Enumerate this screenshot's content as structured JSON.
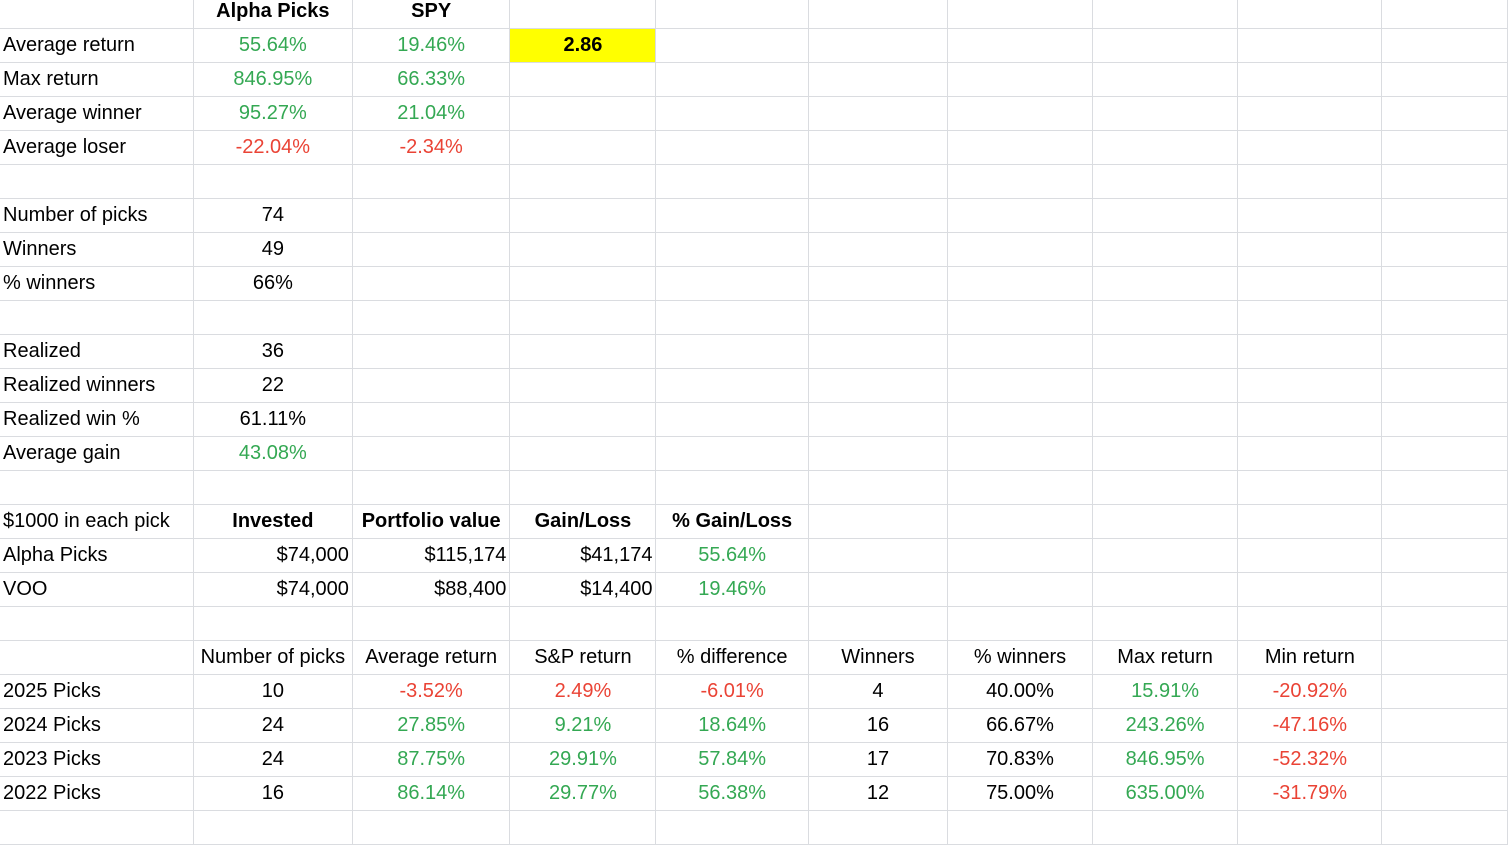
{
  "colors": {
    "positive": "#34a853",
    "negative": "#ea4335",
    "highlight": "#ffff00",
    "grid": "#dadce0"
  },
  "sheet": {
    "header": {
      "col_alpha": "Alpha Picks",
      "col_spy": "SPY"
    },
    "stats": [
      {
        "label": "Average return",
        "alpha": "55.64%",
        "spy": "19.46%"
      },
      {
        "label": "Max return",
        "alpha": "846.95%",
        "spy": "66.33%"
      },
      {
        "label": "Average winner",
        "alpha": "95.27%",
        "spy": "21.04%"
      },
      {
        "label": "Average loser",
        "alpha": "-22.04%",
        "spy": "-2.34%"
      }
    ],
    "ratio": "2.86",
    "counts": [
      {
        "label": "Number of picks",
        "value": "74"
      },
      {
        "label": "Winners",
        "value": "49"
      },
      {
        "label": "% winners",
        "value": "66%"
      }
    ],
    "realized": [
      {
        "label": "Realized",
        "value": "36"
      },
      {
        "label": "Realized winners",
        "value": "22"
      },
      {
        "label": "Realized win %",
        "value": "61.11%"
      },
      {
        "label": "Average gain",
        "value": "43.08%"
      }
    ],
    "portfolio": {
      "headers": [
        "$1000 in each pick",
        "Invested",
        "Portfolio value",
        "Gain/Loss",
        "% Gain/Loss"
      ],
      "rows": [
        {
          "name": "Alpha Picks",
          "invested": "$74,000",
          "value": "$115,174",
          "gain": "$41,174",
          "pct": "55.64%"
        },
        {
          "name": "VOO",
          "invested": "$74,000",
          "value": "$88,400",
          "gain": "$14,400",
          "pct": "19.46%"
        }
      ]
    },
    "yearly": {
      "headers": [
        "Number of picks",
        "Average return",
        "S&P return",
        "% difference",
        "Winners",
        "% winners",
        "Max return",
        "Min return"
      ],
      "rows": [
        {
          "year": "2025 Picks",
          "picks": "10",
          "avg": "-3.52%",
          "sp": "2.49%",
          "diff": "-6.01%",
          "winners": "4",
          "pct_win": "40.00%",
          "max": "15.91%",
          "min": "-20.92%"
        },
        {
          "year": "2024 Picks",
          "picks": "24",
          "avg": "27.85%",
          "sp": "9.21%",
          "diff": "18.64%",
          "winners": "16",
          "pct_win": "66.67%",
          "max": "243.26%",
          "min": "-47.16%"
        },
        {
          "year": "2023 Picks",
          "picks": "24",
          "avg": "87.75%",
          "sp": "29.91%",
          "diff": "57.84%",
          "winners": "17",
          "pct_win": "70.83%",
          "max": "846.95%",
          "min": "-52.32%"
        },
        {
          "year": "2022 Picks",
          "picks": "16",
          "avg": "86.14%",
          "sp": "29.77%",
          "diff": "56.38%",
          "winners": "12",
          "pct_win": "75.00%",
          "max": "635.00%",
          "min": "-31.79%"
        }
      ]
    }
  }
}
